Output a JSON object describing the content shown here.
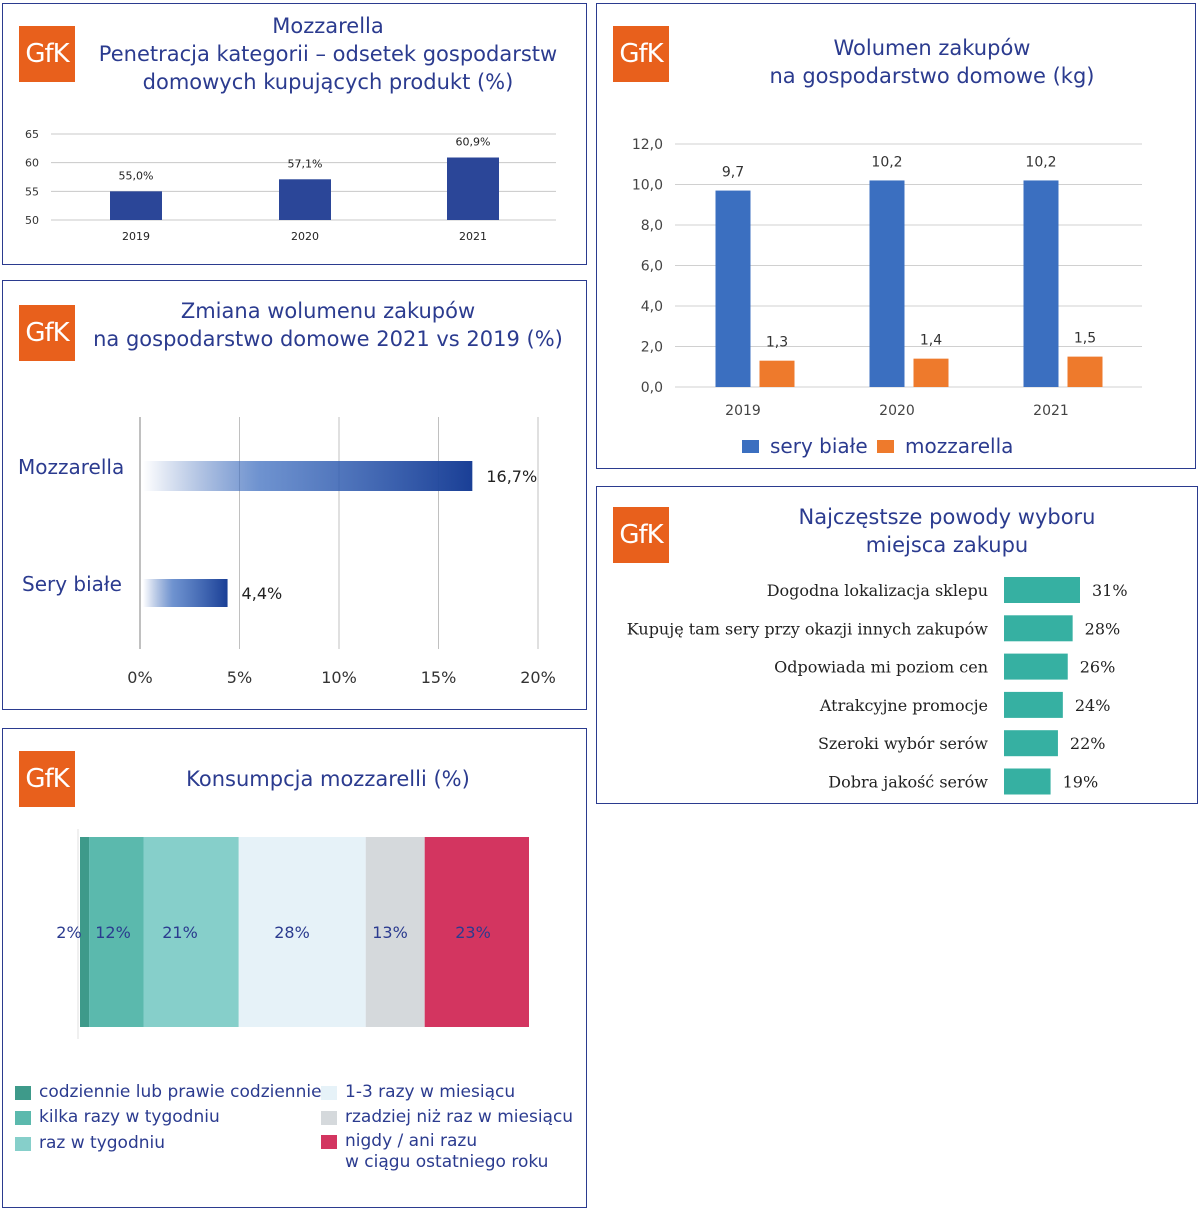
{
  "brand": {
    "logo_text": "GfK",
    "logo_color": "#e8601c",
    "accent": "#2b3b8f"
  },
  "panel1": {
    "title_lines": [
      "Mozzarella",
      "Penetracja kategorii – odsetek gospodarstw",
      "domowych kupujących produkt (%)"
    ],
    "chart_data": {
      "type": "bar",
      "categories": [
        "2019",
        "2020",
        "2021"
      ],
      "values": [
        55.0,
        57.1,
        60.9
      ],
      "data_labels": [
        "55,0%",
        "57,1%",
        "60,9%"
      ],
      "yticks": [
        "65",
        "60",
        "55",
        "50"
      ],
      "ylim": [
        50,
        65
      ],
      "color": "#2b4698"
    }
  },
  "panel2": {
    "title_lines": [
      "Wolumen zakupów",
      "na gospodarstwo domowe (kg)"
    ],
    "chart_data": {
      "type": "bar",
      "categories": [
        "2019",
        "2020",
        "2021"
      ],
      "series": [
        {
          "name": "sery białe",
          "values": [
            9.7,
            10.2,
            10.2
          ],
          "labels": [
            "9,7",
            "10,2",
            "10,2"
          ],
          "color": "#3b6fc0"
        },
        {
          "name": "mozzarella",
          "values": [
            1.3,
            1.4,
            1.5
          ],
          "labels": [
            "1,3",
            "1,4",
            "1,5"
          ],
          "color": "#ee7a2c"
        }
      ],
      "yticks": [
        "12,0",
        "10,0",
        "8,0",
        "6,0",
        "4,0",
        "2,0",
        "0,0"
      ],
      "ylim": [
        0,
        12
      ]
    }
  },
  "panel3": {
    "title_lines": [
      "Zmiana wolumenu zakupów",
      "na gospodarstwo domowe 2021 vs 2019 (%)"
    ],
    "chart_data": {
      "type": "bar",
      "orientation": "horizontal",
      "categories": [
        "Mozzarella",
        "Sery białe"
      ],
      "values": [
        16.7,
        4.4
      ],
      "data_labels": [
        "16,7%",
        "4,4%"
      ],
      "xticks": [
        "0%",
        "5%",
        "10%",
        "15%",
        "20%"
      ],
      "xlim": [
        0,
        20
      ],
      "color": "#1f4fa8"
    }
  },
  "panel4": {
    "title_lines": [
      "Konsumpcja mozzarelli (%)"
    ],
    "chart_data": {
      "type": "bar",
      "orientation": "stacked-horizontal",
      "segments": [
        {
          "name": "codziennie lub prawie codziennie",
          "value": 2,
          "label": "2%",
          "color": "#3e9a8a"
        },
        {
          "name": "kilka razy w tygodniu",
          "value": 12,
          "label": "12%",
          "color": "#5bb9ad"
        },
        {
          "name": "raz w tygodniu",
          "value": 21,
          "label": "21%",
          "color": "#86cfca"
        },
        {
          "name": "1-3 razy w miesiącu",
          "value": 28,
          "label": "28%",
          "color": "#e6f2f8"
        },
        {
          "name": "rzadziej niż raz w miesiącu",
          "value": 13,
          "label": "13%",
          "color": "#d5d9dc"
        },
        {
          "name": "nigdy / ani razu",
          "name_line2": "w ciągu ostatniego roku",
          "value": 23,
          "label": "23%",
          "color": "#d33560"
        }
      ]
    }
  },
  "panel5": {
    "title_lines": [
      "Najczęstsze powody wyboru",
      "miejsca zakupu"
    ],
    "chart_data": {
      "type": "bar",
      "orientation": "horizontal",
      "categories": [
        "Dogodna lokalizacja sklepu",
        "Kupuję tam sery przy okazji innych zakupów",
        "Odpowiada mi poziom cen",
        "Atrakcyjne promocje",
        "Szeroki wybór serów",
        "Dobra jakość serów"
      ],
      "values": [
        31,
        28,
        26,
        24,
        22,
        19
      ],
      "data_labels": [
        "31%",
        "28%",
        "26%",
        "24%",
        "22%",
        "19%"
      ],
      "color": "#36b0a2"
    }
  }
}
